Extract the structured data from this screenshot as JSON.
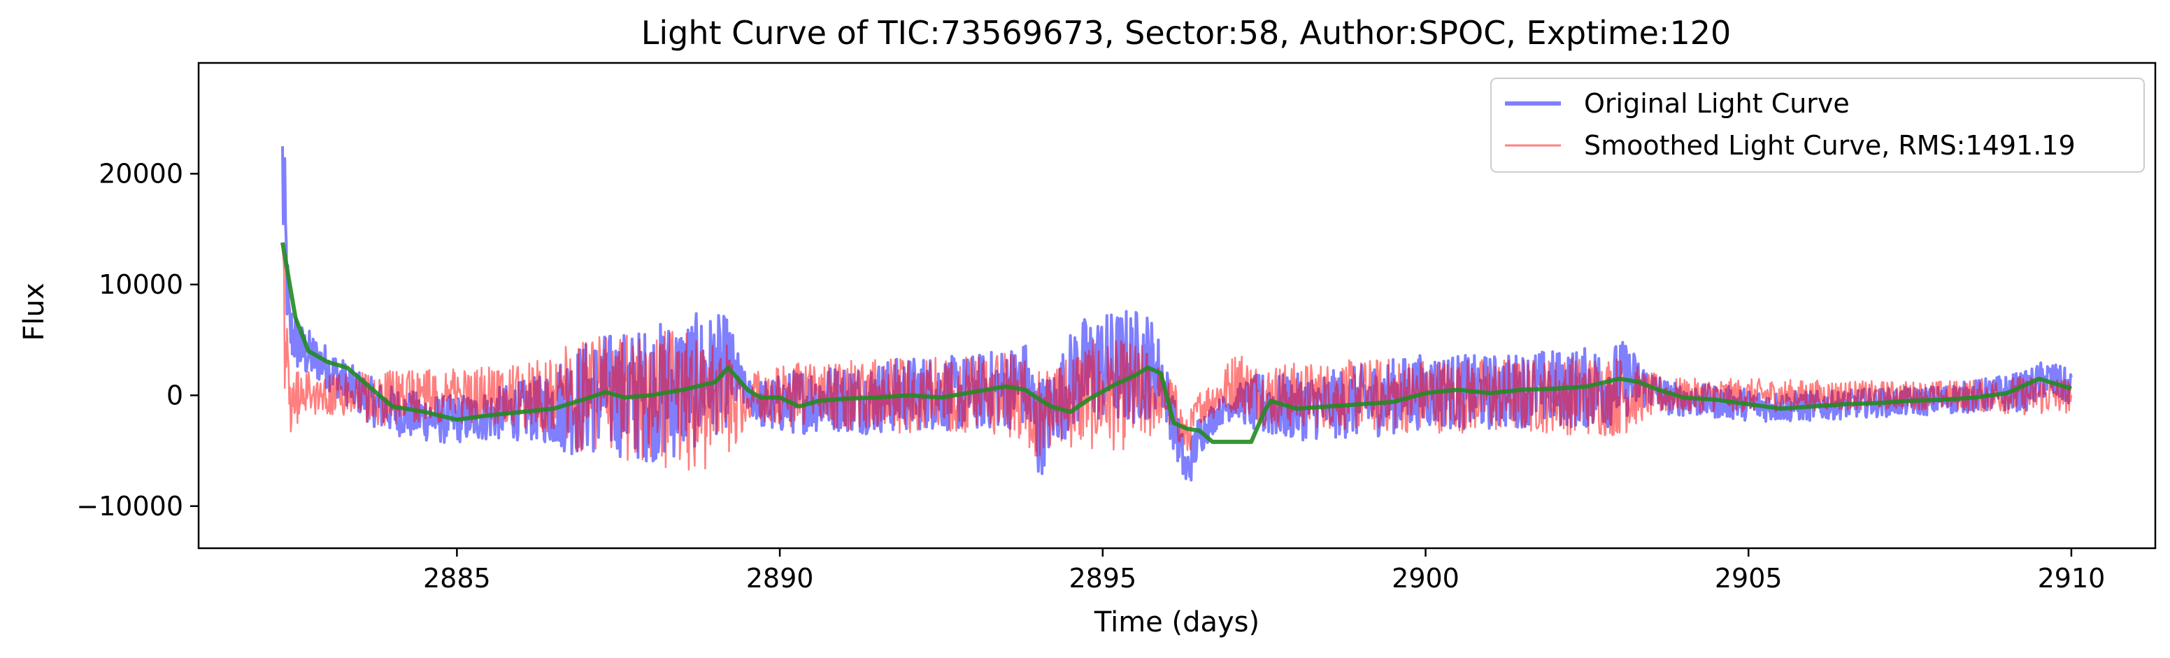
{
  "chart_data": {
    "type": "line",
    "title": "Light Curve of TIC:73569673, Sector:58, Author:SPOC, Exptime:120",
    "xlabel": "Time (days)",
    "ylabel": "Flux",
    "xlim": [
      2881.0,
      2911.3
    ],
    "ylim": [
      -13800,
      30000
    ],
    "xticks": [
      2885,
      2890,
      2895,
      2900,
      2905,
      2910
    ],
    "xtick_labels": [
      "2885",
      "2890",
      "2895",
      "2900",
      "2905",
      "2910"
    ],
    "yticks": [
      -10000,
      0,
      10000,
      20000
    ],
    "ytick_labels": [
      "−10000",
      "0",
      "10000",
      "20000"
    ],
    "grid": false,
    "legend_position": "upper right",
    "series": [
      {
        "name": "Original Light Curve",
        "color": "#0000ff",
        "opacity": 0.5,
        "style": "noisy-band",
        "x": [
          2882.3,
          2882.4,
          2882.6,
          2882.9,
          2883.3,
          2883.8,
          2884.3,
          2884.8,
          2885.3,
          2885.8,
          2886.3,
          2886.8,
          2887.3,
          2887.8,
          2888.3,
          2888.8,
          2889.2,
          2889.4,
          2889.5,
          2889.8,
          2890.3,
          2890.8,
          2891.3,
          2891.8,
          2892.3,
          2892.8,
          2893.3,
          2893.8,
          2894.0,
          2894.2,
          2894.6,
          2895.0,
          2895.4,
          2895.7,
          2895.9,
          2896.1,
          2896.3,
          2896.5,
          2896.8,
          2897.1,
          2897.3,
          2897.5,
          2897.8,
          2898.3,
          2898.8,
          2899.3,
          2899.8,
          2900.3,
          2900.8,
          2901.3,
          2901.8,
          2902.3,
          2902.8,
          2903.1,
          2903.4,
          2903.8,
          2904.3,
          2904.8,
          2905.3,
          2905.8,
          2906.3,
          2906.8,
          2907.3,
          2907.8,
          2908.3,
          2908.8,
          2909.3,
          2909.6,
          2910.0
        ],
        "mean": [
          20000,
          6000,
          4000,
          3000,
          1000,
          -1000,
          -1800,
          -2200,
          -2000,
          -1500,
          -1200,
          -500,
          200,
          0,
          500,
          1500,
          2200,
          1000,
          0,
          -1000,
          -500,
          -200,
          -300,
          0,
          300,
          100,
          500,
          1000,
          -3000,
          -1500,
          2000,
          2500,
          2500,
          2800,
          2000,
          -2500,
          -7000,
          -3500,
          -1500,
          -500,
          -800,
          -900,
          -1100,
          -1000,
          -700,
          -300,
          300,
          400,
          200,
          400,
          700,
          600,
          800,
          1500,
          800,
          -300,
          -500,
          -700,
          -1000,
          -1000,
          -900,
          -700,
          -600,
          -500,
          -200,
          100,
          400,
          1500,
          600
        ],
        "amp": [
          8000,
          3000,
          2500,
          2000,
          2000,
          2200,
          2200,
          2200,
          2200,
          2500,
          3000,
          5000,
          5500,
          6000,
          6500,
          6000,
          5000,
          2000,
          1500,
          2500,
          3000,
          3000,
          3200,
          3400,
          3400,
          3400,
          3600,
          4000,
          5000,
          3500,
          5000,
          5000,
          5500,
          5000,
          3000,
          2500,
          2000,
          2000,
          1200,
          1500,
          2500,
          3000,
          3000,
          3000,
          3200,
          3400,
          3400,
          3400,
          3400,
          3400,
          3400,
          3600,
          3800,
          3500,
          2000,
          1500,
          1500,
          1500,
          1400,
          1400,
          1300,
          1300,
          1300,
          1300,
          1400,
          1600,
          1800,
          1800,
          1600
        ]
      },
      {
        "name": "Smoothed Light Curve, RMS:1491.19",
        "color": "#ff0000",
        "opacity": 0.5,
        "style": "noisy-band",
        "x": [
          2882.3,
          2882.4,
          2882.6,
          2882.9,
          2883.3,
          2883.8,
          2884.3,
          2884.8,
          2885.3,
          2885.8,
          2886.3,
          2886.8,
          2887.3,
          2887.8,
          2888.3,
          2888.8,
          2889.2,
          2889.4,
          2889.5,
          2889.8,
          2890.3,
          2890.8,
          2891.3,
          2891.8,
          2892.3,
          2892.8,
          2893.3,
          2893.8,
          2894.0,
          2894.2,
          2894.6,
          2895.0,
          2895.4,
          2895.7,
          2895.9,
          2896.1,
          2896.3,
          2896.5,
          2896.8,
          2897.1,
          2897.3,
          2897.5,
          2897.8,
          2898.3,
          2898.8,
          2899.3,
          2899.8,
          2900.3,
          2900.8,
          2901.3,
          2901.8,
          2902.3,
          2902.8,
          2903.1,
          2903.4,
          2903.8,
          2904.3,
          2904.8,
          2905.3,
          2905.8,
          2906.3,
          2906.8,
          2907.3,
          2907.8,
          2908.3,
          2908.8,
          2909.3,
          2909.6,
          2910.0
        ],
        "mean": [
          10000,
          -2000,
          500,
          0,
          0,
          -300,
          -200,
          -100,
          0,
          0,
          0,
          -200,
          0,
          -500,
          -500,
          -800,
          -500,
          -1000,
          0,
          0,
          0,
          0,
          0,
          0,
          0,
          0,
          0,
          0,
          -2000,
          -1000,
          0,
          0,
          0,
          0,
          0,
          -1000,
          -4000,
          -1000,
          0,
          1500,
          500,
          0,
          0,
          0,
          0,
          0,
          0,
          0,
          0,
          0,
          0,
          0,
          0,
          0,
          0,
          0,
          0,
          0,
          0,
          0,
          0,
          0,
          0,
          0,
          0,
          0,
          0,
          0,
          0
        ],
        "amp": [
          6000,
          4000,
          2000,
          1800,
          2000,
          2500,
          2500,
          2500,
          2500,
          2800,
          3200,
          5000,
          5500,
          6000,
          6500,
          6000,
          5000,
          2500,
          2000,
          2500,
          3000,
          3000,
          3200,
          3400,
          3400,
          3400,
          3600,
          4000,
          4500,
          3500,
          5000,
          5000,
          5000,
          4500,
          2500,
          2500,
          2000,
          1500,
          2000,
          3000,
          2500,
          2800,
          3000,
          3000,
          3200,
          3400,
          3400,
          3400,
          3400,
          3400,
          3400,
          3600,
          3800,
          3500,
          2200,
          1600,
          1500,
          1500,
          1500,
          1400,
          1400,
          1300,
          1300,
          1300,
          1400,
          1600,
          1800,
          1800,
          1600
        ]
      },
      {
        "name": "",
        "color": "#228b22",
        "opacity": 0.9,
        "style": "line",
        "x": [
          2882.3,
          2882.5,
          2882.7,
          2883.0,
          2883.3,
          2883.6,
          2884.0,
          2884.5,
          2885.0,
          2885.5,
          2886.0,
          2886.5,
          2887.0,
          2887.3,
          2887.6,
          2888.0,
          2888.5,
          2889.0,
          2889.2,
          2889.5,
          2889.7,
          2890.0,
          2890.3,
          2890.6,
          2891.0,
          2891.5,
          2892.0,
          2892.5,
          2893.0,
          2893.5,
          2893.8,
          2894.0,
          2894.2,
          2894.5,
          2894.8,
          2895.2,
          2895.5,
          2895.7,
          2895.9,
          2896.1,
          2896.3,
          2896.5,
          2896.7,
          2897.0,
          2897.3,
          2897.5,
          2897.6,
          2898.0,
          2898.5,
          2899.0,
          2899.5,
          2900.0,
          2900.5,
          2901.0,
          2901.5,
          2902.0,
          2902.5,
          2903.0,
          2903.3,
          2903.6,
          2904.0,
          2904.5,
          2905.0,
          2905.5,
          2906.0,
          2906.5,
          2907.0,
          2907.5,
          2908.0,
          2908.5,
          2909.0,
          2909.5,
          2910.0
        ],
        "y": [
          13800,
          7000,
          4000,
          3000,
          2500,
          1000,
          -1000,
          -1500,
          -2200,
          -1800,
          -1500,
          -1200,
          -300,
          300,
          -200,
          0,
          500,
          1200,
          2500,
          500,
          -200,
          -200,
          -1000,
          -500,
          -300,
          -200,
          0,
          -200,
          300,
          800,
          500,
          -300,
          -1000,
          -1500,
          -300,
          1000,
          1800,
          2500,
          2000,
          -2500,
          -3000,
          -3200,
          -4200,
          -4200,
          -4200,
          -1500,
          -500,
          -1200,
          -1000,
          -800,
          -600,
          200,
          500,
          200,
          500,
          600,
          800,
          1500,
          1200,
          500,
          -200,
          -400,
          -800,
          -1200,
          -1000,
          -800,
          -700,
          -500,
          -400,
          -200,
          200,
          1500,
          600
        ]
      }
    ]
  }
}
